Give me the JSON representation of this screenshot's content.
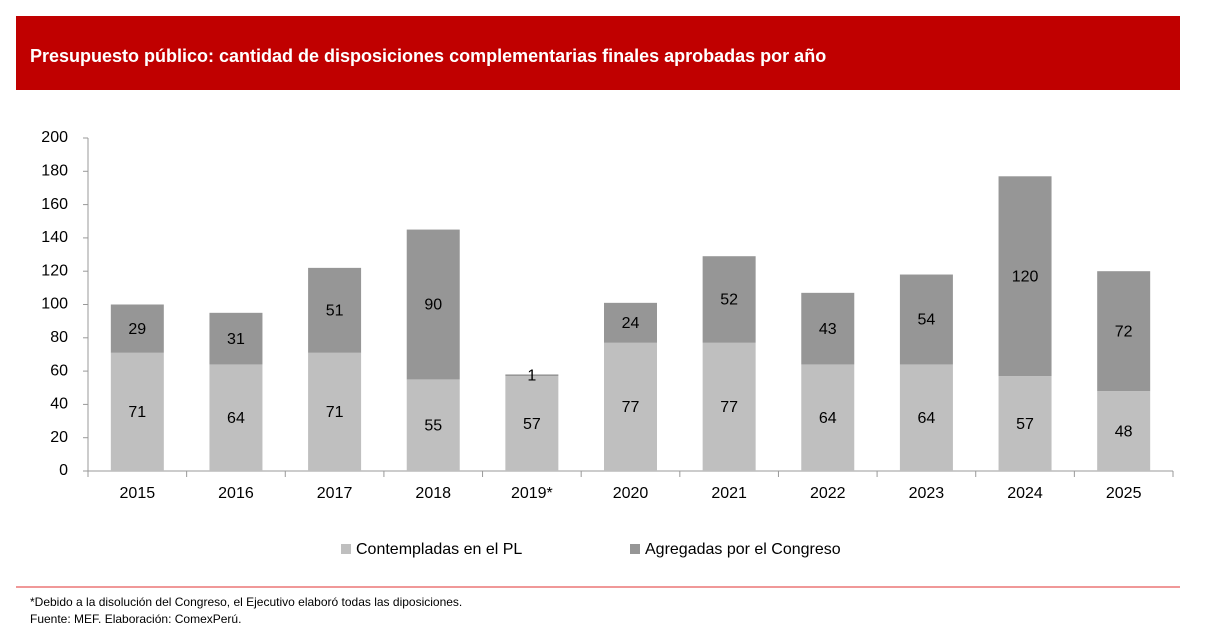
{
  "chart_data": {
    "type": "bar",
    "stacked": true,
    "title": "Presupuesto público: cantidad de disposiciones complementarias finales aprobadas por año",
    "categories": [
      "2015",
      "2016",
      "2017",
      "2018",
      "2019*",
      "2020",
      "2021",
      "2022",
      "2023",
      "2024",
      "2025"
    ],
    "series": [
      {
        "name": "Contempladas en el PL",
        "color": "#bfbfbf",
        "values": [
          71,
          64,
          71,
          55,
          57,
          77,
          77,
          64,
          64,
          57,
          48
        ]
      },
      {
        "name": "Agregadas por el Congreso",
        "color": "#969696",
        "values": [
          29,
          31,
          51,
          90,
          1,
          24,
          52,
          43,
          54,
          120,
          72
        ]
      }
    ],
    "ylim": [
      0,
      200
    ],
    "yticks": [
      0,
      20,
      40,
      60,
      80,
      100,
      120,
      140,
      160,
      180,
      200
    ],
    "grid": false,
    "legend": "bottom"
  },
  "footnotes": [
    "*Debido a la disolución del Congreso, el Ejecutivo elaboró todas las diposiciones.",
    "Fuente: MEF. Elaboración: ComexPerú."
  ]
}
